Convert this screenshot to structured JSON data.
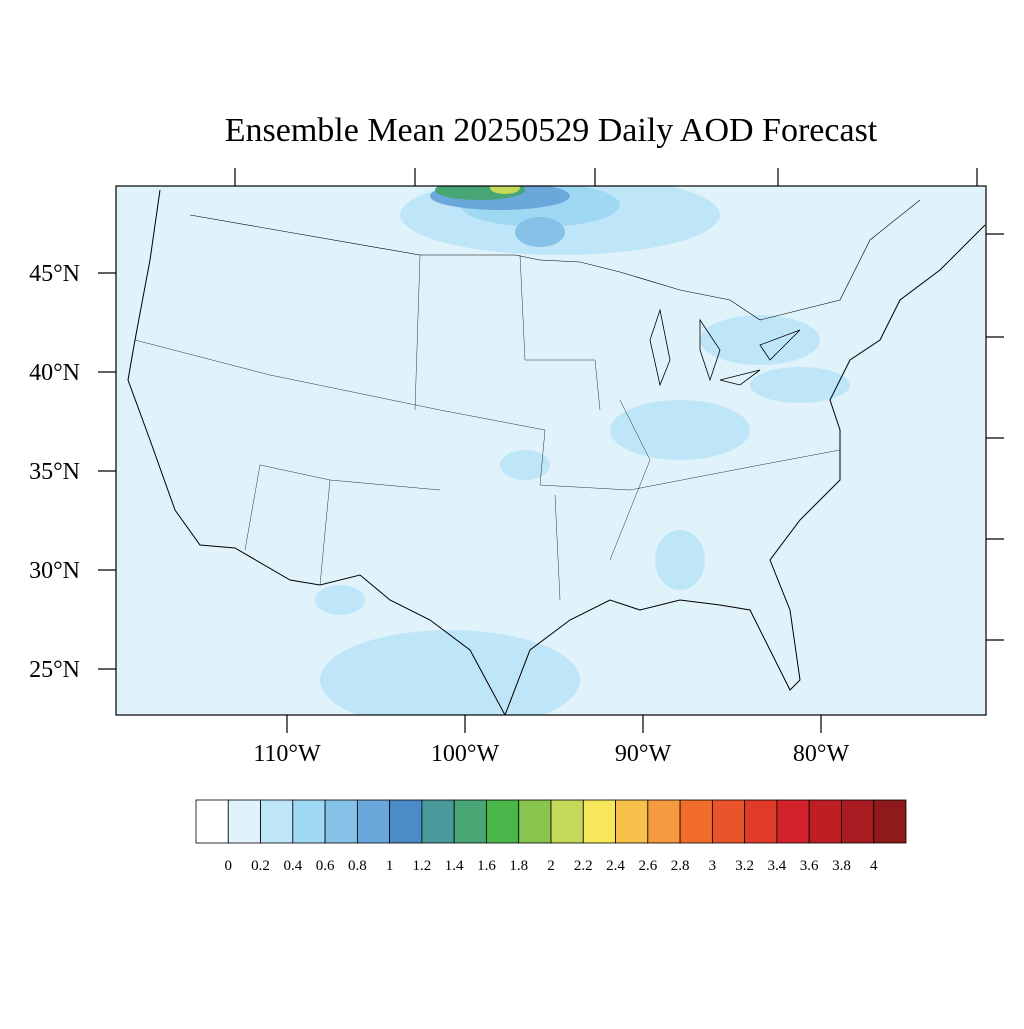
{
  "title": "Ensemble Mean 20250529 Daily AOD Forecast",
  "map": {
    "lat_labels": [
      "45°N",
      "40°N",
      "35°N",
      "30°N",
      "25°N"
    ],
    "lon_labels": [
      "110°W",
      "100°W",
      "90°W",
      "80°W"
    ]
  },
  "colorbar": {
    "colors": [
      "#ffffff",
      "#e0f3fb",
      "#bfe6f8",
      "#9fd8f3",
      "#86c1e8",
      "#6aa8dc",
      "#4a8bc8",
      "#4a9a9c",
      "#48a574",
      "#4ab548",
      "#88c54e",
      "#c4d85a",
      "#f6e85a",
      "#f8c04a",
      "#f59a3e",
      "#f26c2d",
      "#e9542b",
      "#e03b28",
      "#d2232a",
      "#c01e25",
      "#a81b21",
      "#8f1a1c"
    ],
    "labels": [
      "0",
      "0.2",
      "0.4",
      "0.6",
      "0.8",
      "1",
      "1.2",
      "1.4",
      "1.6",
      "1.8",
      "2",
      "2.2",
      "2.4",
      "2.6",
      "2.8",
      "3",
      "3.2",
      "3.4",
      "3.6",
      "3.8",
      "4"
    ]
  }
}
